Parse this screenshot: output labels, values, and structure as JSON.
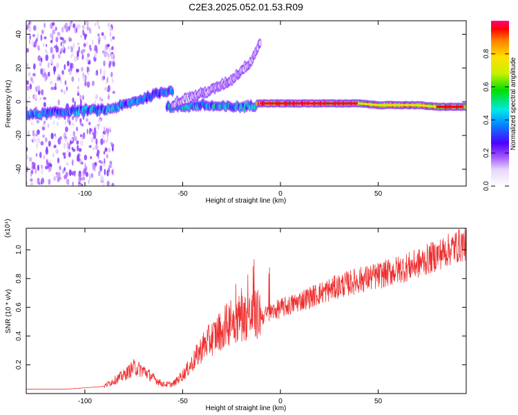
{
  "title": "C2E3.2025.052.01.53.R09",
  "chart_data": [
    {
      "type": "heatmap",
      "xlabel": "Height of straight line (km)",
      "ylabel": "Frequency (Hz)",
      "xlim": [
        -130,
        95
      ],
      "ylim": [
        -50,
        48
      ],
      "x_ticks": [
        -100,
        -50,
        0,
        50
      ],
      "x_tick_labels": [
        "-100",
        "-50",
        "0",
        "50"
      ],
      "y_ticks": [
        -40,
        -20,
        0,
        20,
        40
      ],
      "y_tick_labels": [
        "-40",
        "-20",
        "0",
        "20",
        "40"
      ],
      "colorbar": {
        "label": "Normalized spectral amplitude",
        "range": [
          0,
          1
        ],
        "ticks": [
          0.0,
          0.2,
          0.4,
          0.6,
          0.8
        ],
        "tick_labels": [
          "0.0",
          "0.2",
          "0.4",
          "0.6",
          "0.8"
        ]
      },
      "ridges": [
        {
          "x": [
            -130,
            -120,
            -110,
            -100,
            -90,
            -80,
            -70,
            -60,
            -55
          ],
          "y": [
            -8,
            -7,
            -6,
            -5,
            -5,
            -2,
            2,
            6,
            7
          ],
          "amplitude": 0.45
        },
        {
          "x": [
            -58,
            -50,
            -40,
            -30,
            -20,
            -12
          ],
          "y": [
            -3,
            -3,
            -2,
            -3,
            -3,
            -2
          ],
          "amplitude": 0.5
        },
        {
          "x": [
            -55,
            -45,
            -35,
            -25,
            -15,
            -10
          ],
          "y": [
            -1,
            3,
            7,
            13,
            24,
            36
          ],
          "amplitude": 0.15
        },
        {
          "x": [
            -12,
            0,
            10,
            20,
            30,
            40,
            50,
            60,
            70,
            80,
            90,
            95
          ],
          "y": [
            -1,
            -1,
            -1,
            -1,
            -1,
            -1,
            -2,
            -2,
            -2,
            -3,
            -3,
            -3
          ],
          "amplitude": 0.95
        }
      ]
    },
    {
      "type": "line",
      "xlabel": "Height of straight line (km)",
      "ylabel": "SNR (10 * v/v)",
      "y_multiplier": "(x10⁴)",
      "xlim": [
        -130,
        95
      ],
      "ylim": [
        0,
        1.15
      ],
      "x_ticks": [
        -100,
        -50,
        0,
        50
      ],
      "x_tick_labels": [
        "-100",
        "-50",
        "0",
        "50"
      ],
      "y_ticks": [
        0.2,
        0.4,
        0.6,
        0.8,
        1.0
      ],
      "y_tick_labels": [
        "0.2",
        "0.4",
        "0.6",
        "0.8",
        "1.0"
      ],
      "color": "#ee3030",
      "envelope": {
        "x": [
          -130,
          -110,
          -90,
          -80,
          -75,
          -70,
          -65,
          -60,
          -55,
          -50,
          -45,
          -40,
          -35,
          -30,
          -25,
          -20,
          -15,
          -10,
          -5,
          0,
          5,
          10,
          20,
          30,
          40,
          50,
          60,
          70,
          80,
          90,
          95
        ],
        "y": [
          0.03,
          0.03,
          0.05,
          0.12,
          0.17,
          0.15,
          0.1,
          0.06,
          0.06,
          0.12,
          0.2,
          0.3,
          0.36,
          0.42,
          0.47,
          0.5,
          0.5,
          0.52,
          0.55,
          0.58,
          0.6,
          0.63,
          0.68,
          0.73,
          0.77,
          0.8,
          0.84,
          0.88,
          0.94,
          1.0,
          1.02
        ]
      }
    }
  ]
}
